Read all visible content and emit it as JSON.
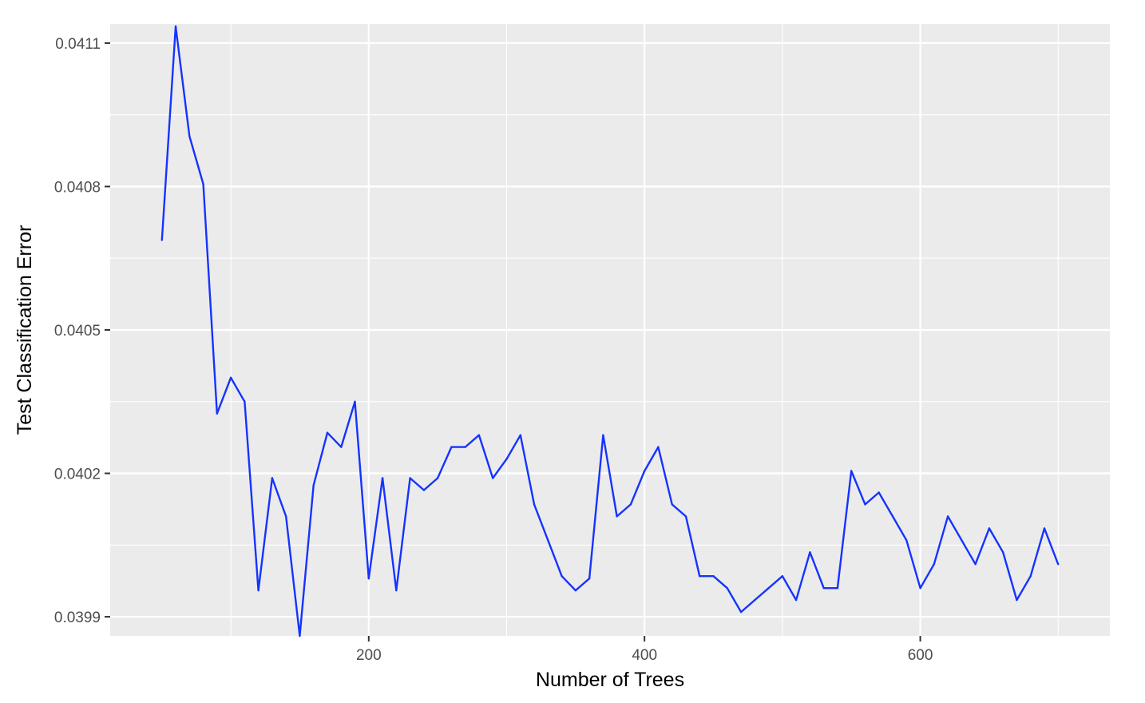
{
  "chart_data": {
    "type": "line",
    "title": "",
    "xlabel": "Number of Trees",
    "ylabel": "Test Classification Error",
    "xlim": [
      12.5,
      737.5
    ],
    "ylim": [
      0.03986,
      0.04114
    ],
    "x_ticks": [
      200,
      400,
      600
    ],
    "x_tick_labels": [
      "200",
      "400",
      "600"
    ],
    "y_ticks": [
      0.0399,
      0.0402,
      0.0405,
      0.0408,
      0.0411
    ],
    "y_tick_labels": [
      "0.0399",
      "0.0402",
      "0.0405",
      "0.0408",
      "0.0411"
    ],
    "grid": true,
    "background": "#ebebeb",
    "line_color": "#1533ff",
    "series": [
      {
        "x": [
          50,
          60,
          70,
          80,
          90,
          100,
          110,
          120,
          130,
          140,
          150,
          160,
          170,
          180,
          190,
          200,
          210,
          220,
          230,
          240,
          250,
          260,
          270,
          280,
          290,
          300,
          310,
          320,
          330,
          340,
          350,
          360,
          370,
          380,
          390,
          400,
          410,
          420,
          430,
          440,
          450,
          460,
          470,
          480,
          490,
          500,
          510,
          520,
          530,
          540,
          550,
          560,
          570,
          580,
          590,
          600,
          610,
          620,
          630,
          640,
          650,
          660,
          670,
          680,
          690,
          700
        ],
        "y": [
          0.040688,
          0.041135,
          0.040905,
          0.040805,
          0.040325,
          0.0404,
          0.04035,
          0.039955,
          0.04019,
          0.04011,
          0.03986,
          0.040175,
          0.040285,
          0.040255,
          0.04035,
          0.03998,
          0.04019,
          0.039955,
          0.04019,
          0.040165,
          0.04019,
          0.040255,
          0.040255,
          0.04028,
          0.04019,
          0.04023,
          0.04028,
          0.040135,
          0.04006,
          0.039985,
          0.039955,
          0.03998,
          0.04028,
          0.04011,
          0.040135,
          0.040205,
          0.040255,
          0.040135,
          0.04011,
          0.039985,
          0.039985,
          0.03996,
          0.03991,
          0.039935,
          0.03996,
          0.039985,
          0.039935,
          0.040035,
          0.03996,
          0.03996,
          0.040205,
          0.040135,
          0.04016,
          0.04011,
          0.04006,
          0.03996,
          0.04001,
          0.04011,
          0.04006,
          0.04001,
          0.040085,
          0.040035,
          0.039935,
          0.039985,
          0.040085,
          0.04001
        ]
      }
    ]
  }
}
